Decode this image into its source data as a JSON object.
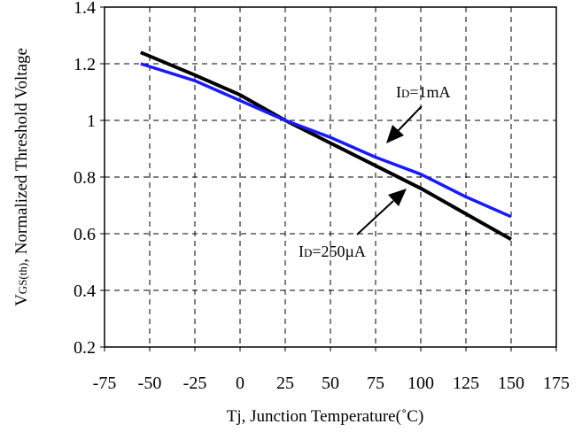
{
  "chart_data": {
    "type": "line",
    "title": "",
    "xlabel": "Tj, Junction Temperature(˚C)",
    "ylabel_main": "V",
    "ylabel_sub": "GS(th)",
    "ylabel_rest": ", Normalized Threshold Voltage",
    "xlim": [
      -75,
      175
    ],
    "ylim": [
      0.2,
      1.4
    ],
    "x_ticks": [
      -75,
      -50,
      -25,
      0,
      25,
      50,
      75,
      100,
      125,
      150,
      175
    ],
    "y_ticks": [
      0.2,
      0.4,
      0.6,
      0.8,
      1,
      1.2,
      1.4
    ],
    "x_tick_labels": [
      "-75",
      "-50",
      "-25",
      "0",
      "25",
      "50",
      "75",
      "100",
      "125",
      "150",
      "175"
    ],
    "y_tick_labels": [
      "0.2",
      "0.4",
      "0.6",
      "0.8",
      "1",
      "1.2",
      "1.4"
    ],
    "grid": true,
    "series": [
      {
        "name": "ID=250µA",
        "label_main": "I",
        "label_sub": "D",
        "label_rest": "=250µA",
        "color": "#000000",
        "x": [
          -55,
          -25,
          0,
          25,
          50,
          75,
          100,
          125,
          150
        ],
        "y": [
          1.24,
          1.16,
          1.09,
          1.0,
          0.92,
          0.84,
          0.76,
          0.67,
          0.58
        ]
      },
      {
        "name": "ID=1mA",
        "label_main": "I",
        "label_sub": "D",
        "label_rest": "=1mA",
        "color": "#1a1aff",
        "x": [
          -55,
          -25,
          0,
          25,
          50,
          75,
          100,
          125,
          150
        ],
        "y": [
          1.2,
          1.14,
          1.07,
          1.0,
          0.94,
          0.87,
          0.81,
          0.73,
          0.66
        ]
      }
    ]
  }
}
